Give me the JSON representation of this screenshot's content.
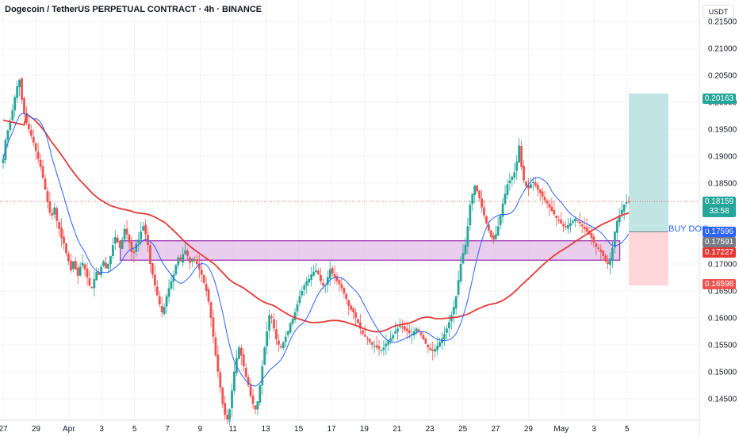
{
  "header": {
    "title": "Dogecoin / TetherUS PERPETUAL CONTRACT · 4h · BINANCE",
    "unit": "USDT"
  },
  "chart_data": {
    "type": "candlestick",
    "ylim": [
      0.141,
      0.219
    ],
    "y_ticks": [
      "0.21500",
      "0.21000",
      "0.20500",
      "0.20000",
      "0.19500",
      "0.19000",
      "0.18500",
      "0.17000",
      "0.16500",
      "0.16000",
      "0.15500",
      "0.15000",
      "0.14500"
    ],
    "x_ticks": [
      "27",
      "29",
      "Apr",
      "3",
      "5",
      "7",
      "9",
      "11",
      "13",
      "15",
      "17",
      "19",
      "21",
      "23",
      "25",
      "27",
      "29",
      "May",
      "3",
      "5"
    ],
    "x_tick_index": [
      0,
      26,
      52,
      78,
      104,
      130,
      156,
      182,
      208,
      234,
      260,
      286,
      312,
      338,
      364,
      390,
      416,
      442,
      468,
      494
    ],
    "num_bars": 460,
    "candles_close": [
      0.1895,
      0.193,
      0.1948,
      0.1965,
      0.1985,
      0.201,
      0.203,
      0.2042,
      0.2005,
      0.198,
      0.1962,
      0.195,
      0.1938,
      0.1925,
      0.191,
      0.1895,
      0.188,
      0.186,
      0.1838,
      0.1815,
      0.1795,
      0.179,
      0.1805,
      0.178,
      0.1765,
      0.1748,
      0.1738,
      0.172,
      0.1705,
      0.1688,
      0.1705,
      0.169,
      0.1678,
      0.1695,
      0.1702,
      0.169,
      0.1675,
      0.166,
      0.1655,
      0.1672,
      0.1685,
      0.168,
      0.1695,
      0.1705,
      0.1692,
      0.17,
      0.1715,
      0.1735,
      0.175,
      0.174,
      0.173,
      0.1745,
      0.1765,
      0.1755,
      0.174,
      0.1722,
      0.172,
      0.1738,
      0.1745,
      0.176,
      0.177,
      0.1755,
      0.1735,
      0.17,
      0.168,
      0.166,
      0.1642,
      0.1625,
      0.161,
      0.162,
      0.164,
      0.1655,
      0.1668,
      0.168,
      0.1698,
      0.1712,
      0.1705,
      0.1718,
      0.1725,
      0.1715,
      0.1702,
      0.171,
      0.1706,
      0.17,
      0.169,
      0.168,
      0.1665,
      0.165,
      0.163,
      0.16,
      0.1565,
      0.153,
      0.15,
      0.147,
      0.144,
      0.142,
      0.141,
      0.143,
      0.1465,
      0.15,
      0.1525,
      0.1545,
      0.153,
      0.151,
      0.149,
      0.1475,
      0.1455,
      0.144,
      0.143,
      0.1445,
      0.1475,
      0.151,
      0.1545,
      0.1575,
      0.1605,
      0.16,
      0.158,
      0.156,
      0.155,
      0.1545,
      0.1555,
      0.1565,
      0.1575,
      0.159,
      0.1598,
      0.161,
      0.1625,
      0.164,
      0.165,
      0.166,
      0.1668,
      0.1672,
      0.168,
      0.1685,
      0.1688,
      0.168,
      0.1668,
      0.166,
      0.1662,
      0.1675,
      0.169,
      0.1682,
      0.1675,
      0.1668,
      0.1662,
      0.1655,
      0.1645,
      0.1635,
      0.1622,
      0.1615,
      0.161,
      0.16,
      0.159,
      0.158,
      0.157,
      0.1565,
      0.156,
      0.1555,
      0.155,
      0.1548,
      0.1545,
      0.1542,
      0.154,
      0.1545,
      0.1552,
      0.1558,
      0.1562,
      0.1568,
      0.1575,
      0.158,
      0.1585,
      0.1582,
      0.1578,
      0.1575,
      0.1572,
      0.157,
      0.1575,
      0.158,
      0.1575,
      0.1568,
      0.156,
      0.1552,
      0.1545,
      0.154,
      0.1538,
      0.1542,
      0.1548,
      0.1555,
      0.1562,
      0.157,
      0.158,
      0.1592,
      0.1605,
      0.162,
      0.164,
      0.167,
      0.17,
      0.172,
      0.1735,
      0.177,
      0.181,
      0.183,
      0.1845,
      0.1835,
      0.1822,
      0.1805,
      0.179,
      0.1775,
      0.1762,
      0.175,
      0.1745,
      0.1755,
      0.177,
      0.179,
      0.1812,
      0.183,
      0.1848,
      0.1855,
      0.1862,
      0.187,
      0.189,
      0.192,
      0.188,
      0.1855,
      0.1845,
      0.184,
      0.1848,
      0.1852,
      0.1845,
      0.1838,
      0.1832,
      0.1825,
      0.1818,
      0.1812,
      0.1805,
      0.1798,
      0.1792,
      0.1785,
      0.178,
      0.1775,
      0.177,
      0.1768,
      0.1772,
      0.1776,
      0.178,
      0.1784,
      0.178,
      0.1775,
      0.177,
      0.1765,
      0.176,
      0.1755,
      0.1748,
      0.174,
      0.1732,
      0.1728,
      0.1722,
      0.1715,
      0.1705,
      0.17,
      0.171,
      0.173,
      0.176,
      0.178,
      0.179,
      0.18,
      0.181,
      0.1815,
      0.1816
    ]
  },
  "levels": {
    "ma_red_label": "0.17227",
    "ma_blue_label": "0.17591",
    "entry_label": "0.17596",
    "target_label": "0.20163",
    "stop_label": "0.16598",
    "price_label": "0.18159",
    "countdown": "33:58",
    "buy_text": "BUY DOG"
  },
  "colors": {
    "up": "#26a69a",
    "down": "#ef5350",
    "ma_red": "#e53935",
    "ma_blue": "#2962ff",
    "zone_fill": "#e1bee7",
    "zone_border": "#9c27b0",
    "target_fill": "#b2dfdb",
    "stop_fill": "#ffcdd2",
    "entry_tag": "#2962ff",
    "ma_tag": "#787b86"
  }
}
